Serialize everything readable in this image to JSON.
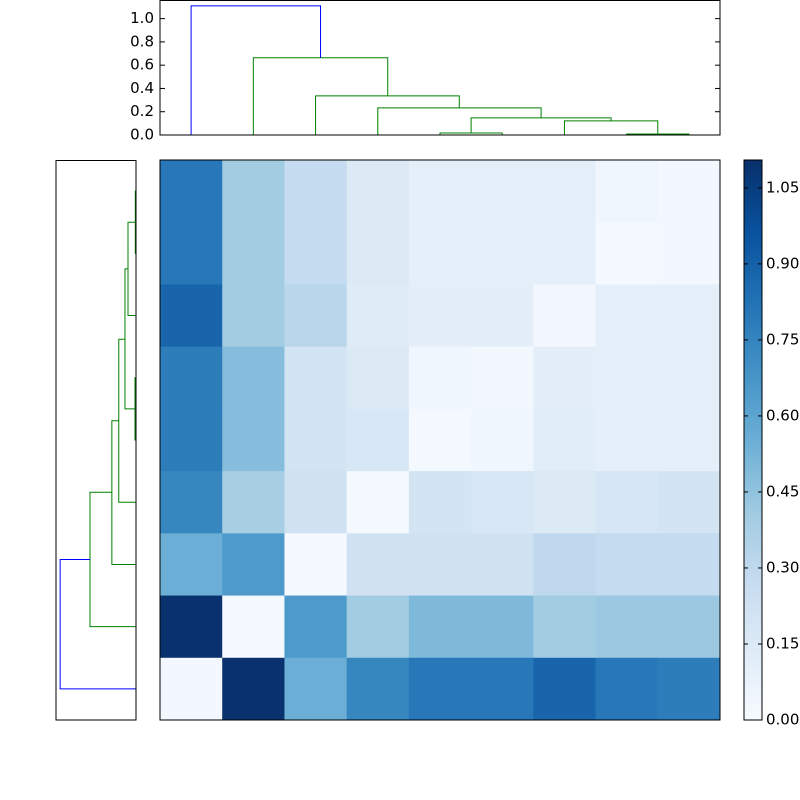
{
  "chart_data": [
    {
      "type": "dendrogram",
      "orient": "top",
      "xlim": [
        0,
        90
      ],
      "ylim": [
        0,
        1.16
      ],
      "yticks": [
        {
          "value": 0,
          "label": "0.0"
        },
        {
          "value": 0.2,
          "label": "0.2"
        },
        {
          "value": 0.4,
          "label": "0.4"
        },
        {
          "value": 0.6,
          "label": "0.6"
        },
        {
          "value": 0.8,
          "label": "0.8"
        },
        {
          "value": 1,
          "label": "1.0"
        }
      ],
      "links": [
        {
          "pos": [
            45,
            45,
            55,
            55
          ],
          "dist": [
            0,
            0.017,
            0.017,
            0
          ],
          "color": "#008000"
        },
        {
          "pos": [
            75,
            75,
            85,
            85
          ],
          "dist": [
            0,
            0.009,
            0.009,
            0
          ],
          "color": "#008000"
        },
        {
          "pos": [
            65,
            65,
            80,
            80
          ],
          "dist": [
            0,
            0.121,
            0.121,
            0.009
          ],
          "color": "#008000"
        },
        {
          "pos": [
            50,
            50,
            72.5,
            72.5
          ],
          "dist": [
            0.017,
            0.147,
            0.147,
            0.121
          ],
          "color": "#008000"
        },
        {
          "pos": [
            35,
            35,
            61.25,
            61.25
          ],
          "dist": [
            0,
            0.233,
            0.233,
            0.147
          ],
          "color": "#008000"
        },
        {
          "pos": [
            25,
            25,
            48.1,
            48.1
          ],
          "dist": [
            0,
            0.336,
            0.336,
            0.233
          ],
          "color": "#008000"
        },
        {
          "pos": [
            15,
            15,
            36.6,
            36.6
          ],
          "dist": [
            0,
            0.664,
            0.664,
            0.336
          ],
          "color": "#008000"
        },
        {
          "pos": [
            5,
            5,
            25.8,
            25.8
          ],
          "dist": [
            0,
            1.11,
            1.11,
            0.664
          ],
          "color": "#0000ff"
        }
      ]
    },
    {
      "type": "dendrogram",
      "orient": "left",
      "xlim": [
        1.16,
        0
      ],
      "ylim": [
        0,
        90
      ],
      "links": [
        {
          "pos": [
            45,
            45,
            55,
            55
          ],
          "dist": [
            0,
            0.015,
            0.015,
            0
          ],
          "color": "#008000"
        },
        {
          "pos": [
            75,
            75,
            85,
            85
          ],
          "dist": [
            0,
            0.01,
            0.01,
            0
          ],
          "color": "#008000"
        },
        {
          "pos": [
            65,
            65,
            80,
            80
          ],
          "dist": [
            0,
            0.116,
            0.116,
            0.01
          ],
          "color": "#008000"
        },
        {
          "pos": [
            50,
            50,
            72.5,
            72.5
          ],
          "dist": [
            0.015,
            0.16,
            0.16,
            0.116
          ],
          "color": "#008000"
        },
        {
          "pos": [
            35,
            35,
            61.2,
            61.2
          ],
          "dist": [
            0,
            0.25,
            0.25,
            0.16
          ],
          "color": "#008000"
        },
        {
          "pos": [
            25,
            25,
            48.1,
            48.1
          ],
          "dist": [
            0,
            0.35,
            0.35,
            0.25
          ],
          "color": "#008000"
        },
        {
          "pos": [
            15,
            15,
            36.6,
            36.6
          ],
          "dist": [
            0,
            0.667,
            0.667,
            0.35
          ],
          "color": "#008000"
        },
        {
          "pos": [
            5,
            5,
            25.8,
            25.8
          ],
          "dist": [
            0,
            1.1,
            1.1,
            0.667
          ],
          "color": "#0000ff"
        }
      ]
    },
    {
      "type": "heatmap",
      "clim": [
        0,
        1.105
      ],
      "colormap": [
        "#f7fbff",
        "#deebf7",
        "#c6dbef",
        "#9ecae1",
        "#6baed6",
        "#4292c6",
        "#2171b5",
        "#08519c",
        "#08306b"
      ],
      "cticks": [
        {
          "value": 0,
          "label": "0.00"
        },
        {
          "value": 0.15,
          "label": "0.15"
        },
        {
          "value": 0.3,
          "label": "0.30"
        },
        {
          "value": 0.45,
          "label": "0.45"
        },
        {
          "value": 0.6,
          "label": "0.60"
        },
        {
          "value": 0.75,
          "label": "0.75"
        },
        {
          "value": 0.9,
          "label": "0.90"
        },
        {
          "value": 1.05,
          "label": "1.05"
        }
      ],
      "values": [
        [
          0.8,
          0.4,
          0.28,
          0.15,
          0.1,
          0.1,
          0.1,
          0.04,
          0.03
        ],
        [
          0.8,
          0.4,
          0.28,
          0.15,
          0.1,
          0.1,
          0.1,
          0.02,
          0.03
        ],
        [
          0.88,
          0.4,
          0.32,
          0.13,
          0.11,
          0.11,
          0.03,
          0.1,
          0.1
        ],
        [
          0.78,
          0.48,
          0.2,
          0.15,
          0.04,
          0.03,
          0.11,
          0.1,
          0.1
        ],
        [
          0.78,
          0.48,
          0.2,
          0.17,
          0.02,
          0.04,
          0.12,
          0.1,
          0.1
        ],
        [
          0.74,
          0.38,
          0.22,
          0.02,
          0.2,
          0.17,
          0.15,
          0.18,
          0.2
        ],
        [
          0.55,
          0.65,
          0.02,
          0.22,
          0.22,
          0.22,
          0.3,
          0.28,
          0.28
        ],
        [
          1.1,
          0.02,
          0.65,
          0.4,
          0.5,
          0.5,
          0.4,
          0.42,
          0.42
        ],
        [
          0.03,
          1.1,
          0.55,
          0.74,
          0.8,
          0.8,
          0.88,
          0.8,
          0.78
        ]
      ]
    }
  ]
}
